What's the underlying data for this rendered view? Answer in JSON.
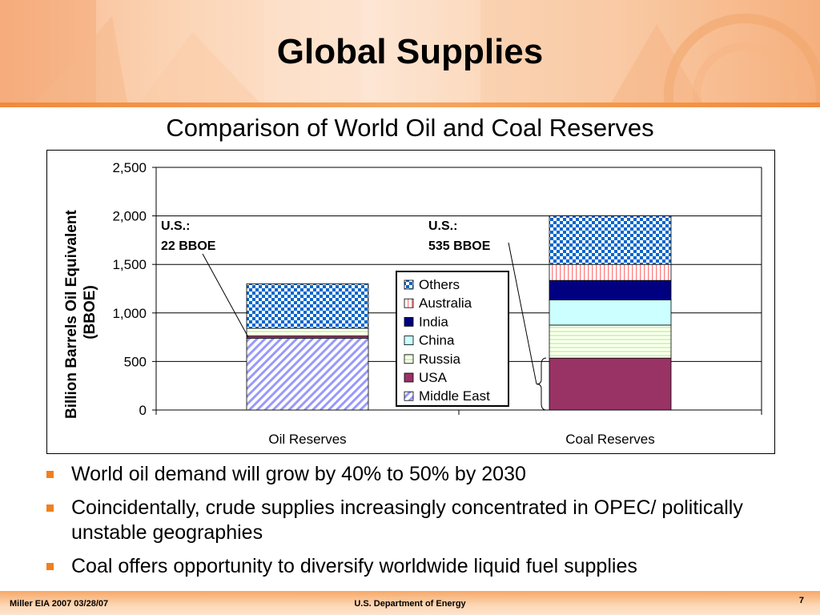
{
  "slide": {
    "title": "Global Supplies"
  },
  "footer": {
    "left": "Miller  EIA 2007   03/28/07",
    "center": "U.S. Department of Energy",
    "page": "7"
  },
  "bullets": [
    "World oil demand will grow by 40% to 50% by 2030",
    "Coincidentally, crude supplies increasingly concentrated in OPEC/ politically unstable geographies",
    "Coal offers opportunity to diversify worldwide liquid fuel supplies"
  ],
  "colors": {
    "bullet": "#f0801e",
    "middle_east": "#9999ff",
    "usa": "#993366",
    "russia": "#ccff99",
    "china": "#ccffff",
    "india": "#000080",
    "australia": "#ff8080",
    "others": "#0066cc"
  },
  "chart_data": {
    "type": "bar",
    "stacked": true,
    "title": "Comparison of World Oil and Coal Reserves",
    "ylabel": "Billion Barrels Oil Equivalent (BBOE)",
    "xlabel": "",
    "categories": [
      "Oil Reserves",
      "Coal Reserves"
    ],
    "ylim": [
      0,
      2500
    ],
    "yticks": [
      "0",
      "500",
      "1,000",
      "1,500",
      "2,000",
      "2,500"
    ],
    "ytick_values": [
      0,
      500,
      1000,
      1500,
      2000,
      2500
    ],
    "grid": true,
    "legend_position": "center",
    "series": [
      {
        "name": "Middle East",
        "values": [
          740,
          0
        ]
      },
      {
        "name": "USA",
        "values": [
          22,
          535
        ]
      },
      {
        "name": "Russia",
        "values": [
          80,
          340
        ]
      },
      {
        "name": "China",
        "values": [
          0,
          260
        ]
      },
      {
        "name": "India",
        "values": [
          0,
          200
        ]
      },
      {
        "name": "Australia",
        "values": [
          0,
          165
        ]
      },
      {
        "name": "Others",
        "values": [
          458,
          500
        ]
      }
    ],
    "legend_order": [
      "Others",
      "Australia",
      "India",
      "China",
      "Russia",
      "USA",
      "Middle East"
    ],
    "annotations": [
      {
        "line1": "U.S.:",
        "line2": "22 BBOE",
        "category": "Oil Reserves",
        "value": 22
      },
      {
        "line1": "U.S.:",
        "line2": "535 BBOE",
        "category": "Coal Reserves",
        "value": 535
      }
    ]
  }
}
